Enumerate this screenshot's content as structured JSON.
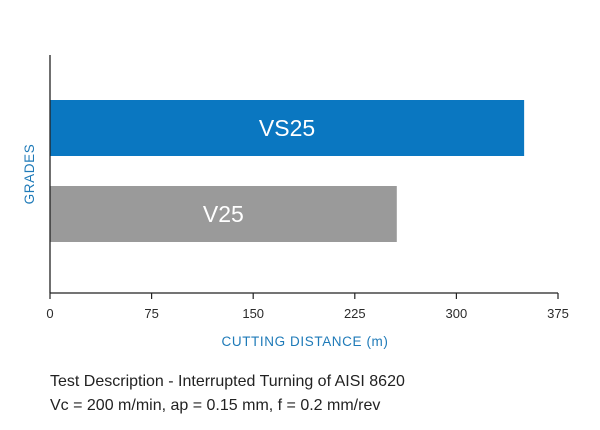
{
  "chart_data": {
    "type": "bar",
    "orientation": "horizontal",
    "categories": [
      "VS25",
      "V25"
    ],
    "values": [
      350,
      256
    ],
    "colors": [
      "#0a77c1",
      "#9a9a9a"
    ],
    "xlabel": "CUTTING DISTANCE (m)",
    "ylabel": "GRADES",
    "xlim": [
      0,
      375
    ],
    "xticks": [
      0,
      75,
      150,
      225,
      300,
      375
    ],
    "label_color": "#1e7ab8",
    "grid": false
  },
  "description": {
    "line1": "Test Description - Interrupted Turning of AISI 8620",
    "line2": "Vc = 200 m/min, ap = 0.15 mm, f = 0.2 mm/rev"
  }
}
